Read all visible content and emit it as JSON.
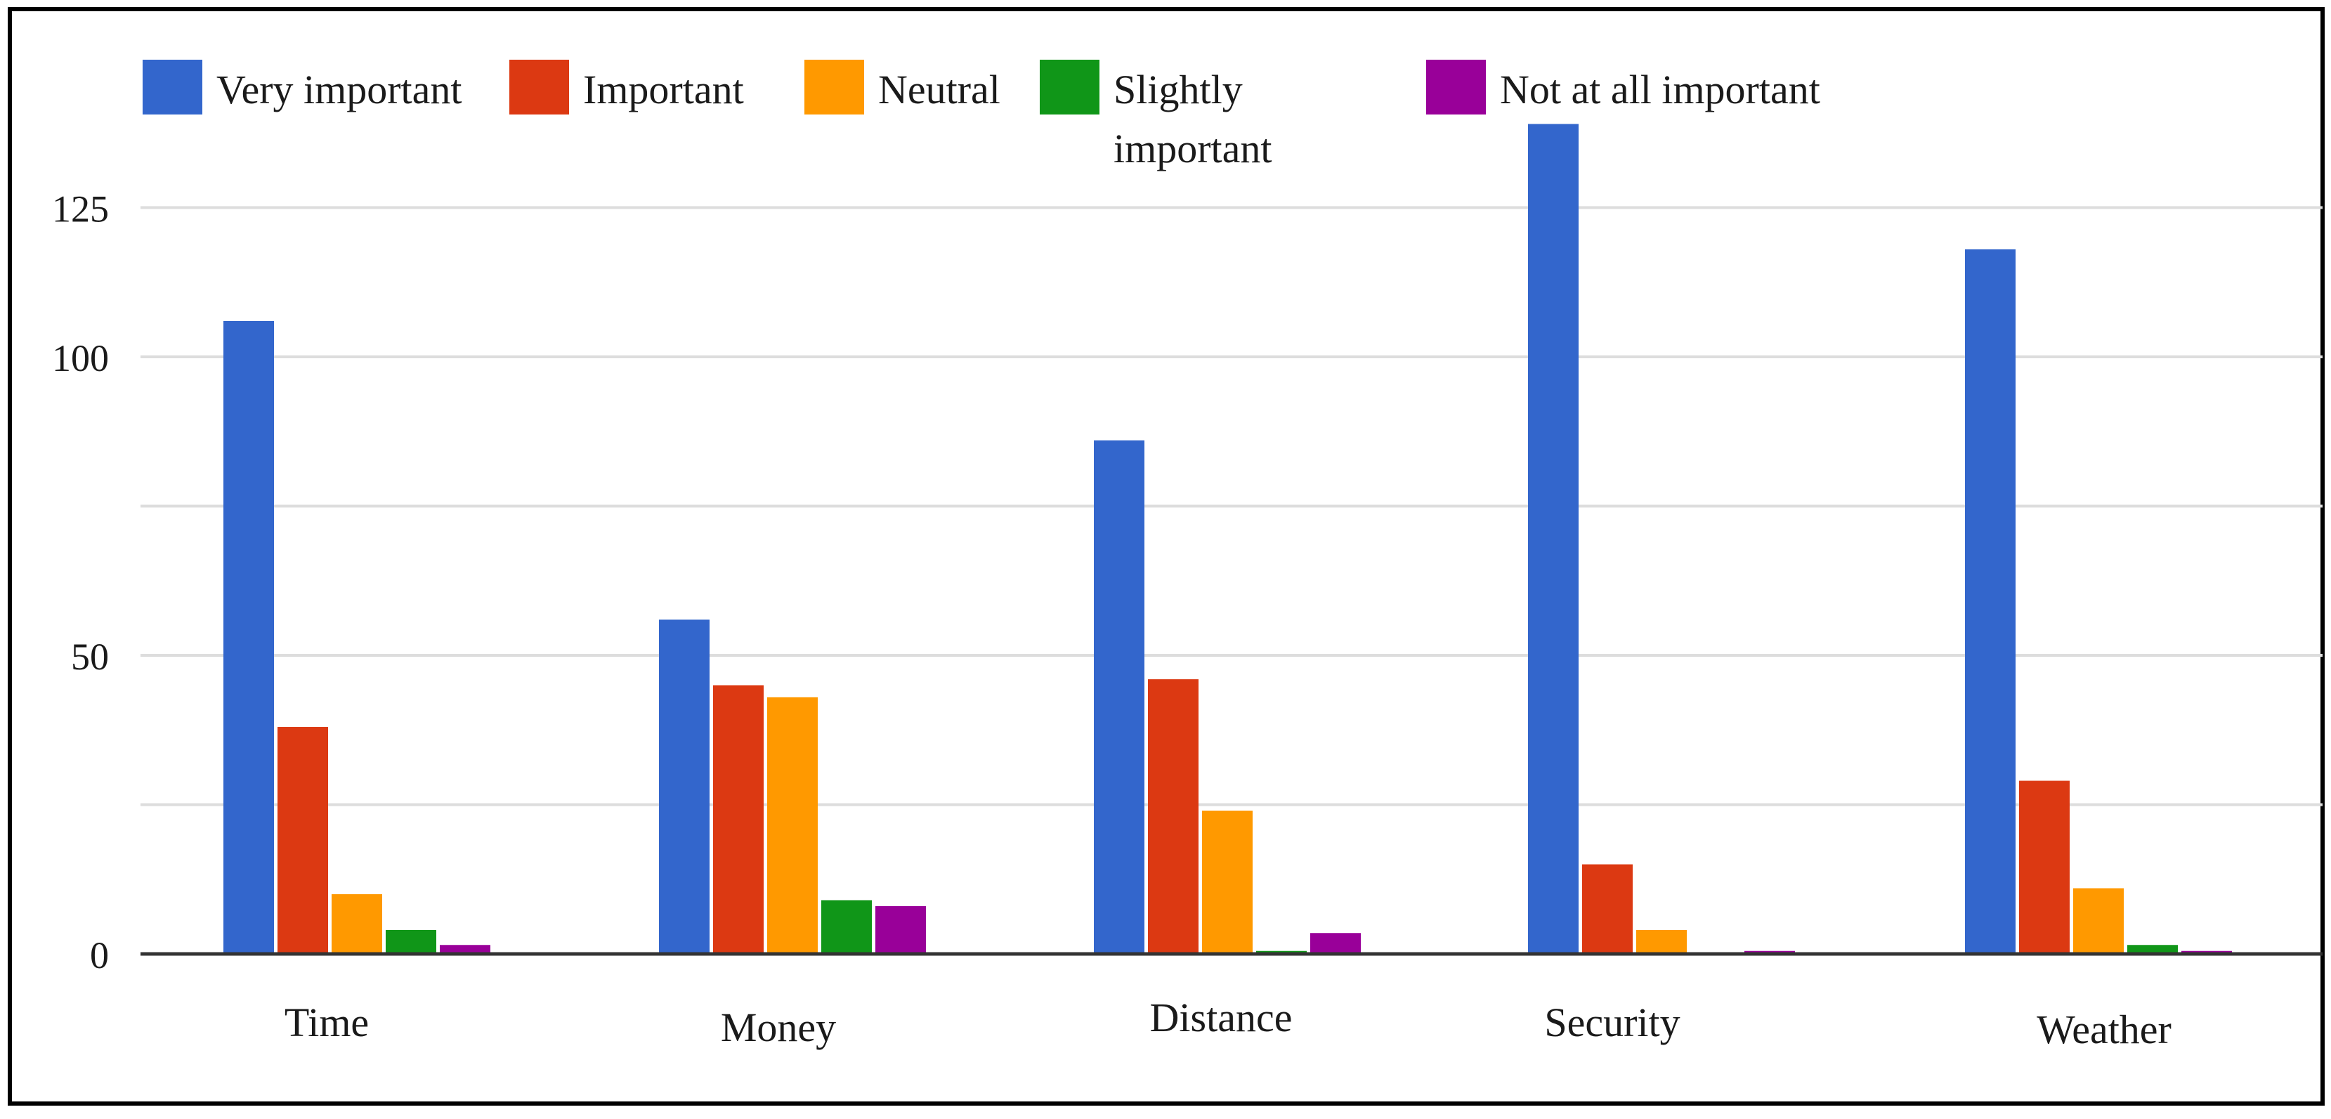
{
  "chart_data": {
    "type": "bar",
    "title": "",
    "xlabel": "",
    "ylabel": "",
    "ylim": [
      0,
      140
    ],
    "y_ticks": [
      0,
      50,
      100,
      125
    ],
    "gridlines": [
      25,
      50,
      75,
      100,
      125
    ],
    "grid": true,
    "legend_position": "top",
    "categories": [
      "Time",
      "Money",
      "Distance",
      "Security",
      "Weather"
    ],
    "series": [
      {
        "name": "Very important",
        "color": "#3366CC",
        "values": [
          106,
          56,
          86,
          139,
          118
        ]
      },
      {
        "name": "Important",
        "color": "#DC3912",
        "values": [
          38,
          45,
          46,
          15,
          29
        ]
      },
      {
        "name": "Neutral",
        "color": "#FF9900",
        "values": [
          10,
          43,
          24,
          4,
          11
        ]
      },
      {
        "name": "Slightly important",
        "color": "#109618",
        "values": [
          4,
          9,
          0.5,
          0,
          1.5
        ]
      },
      {
        "name": "Not at all important",
        "color": "#990099",
        "values": [
          1.5,
          8,
          3.5,
          0.5,
          0.5
        ]
      }
    ]
  },
  "legend_lines": {
    "Slightly important": [
      "Slightly",
      "important"
    ]
  }
}
